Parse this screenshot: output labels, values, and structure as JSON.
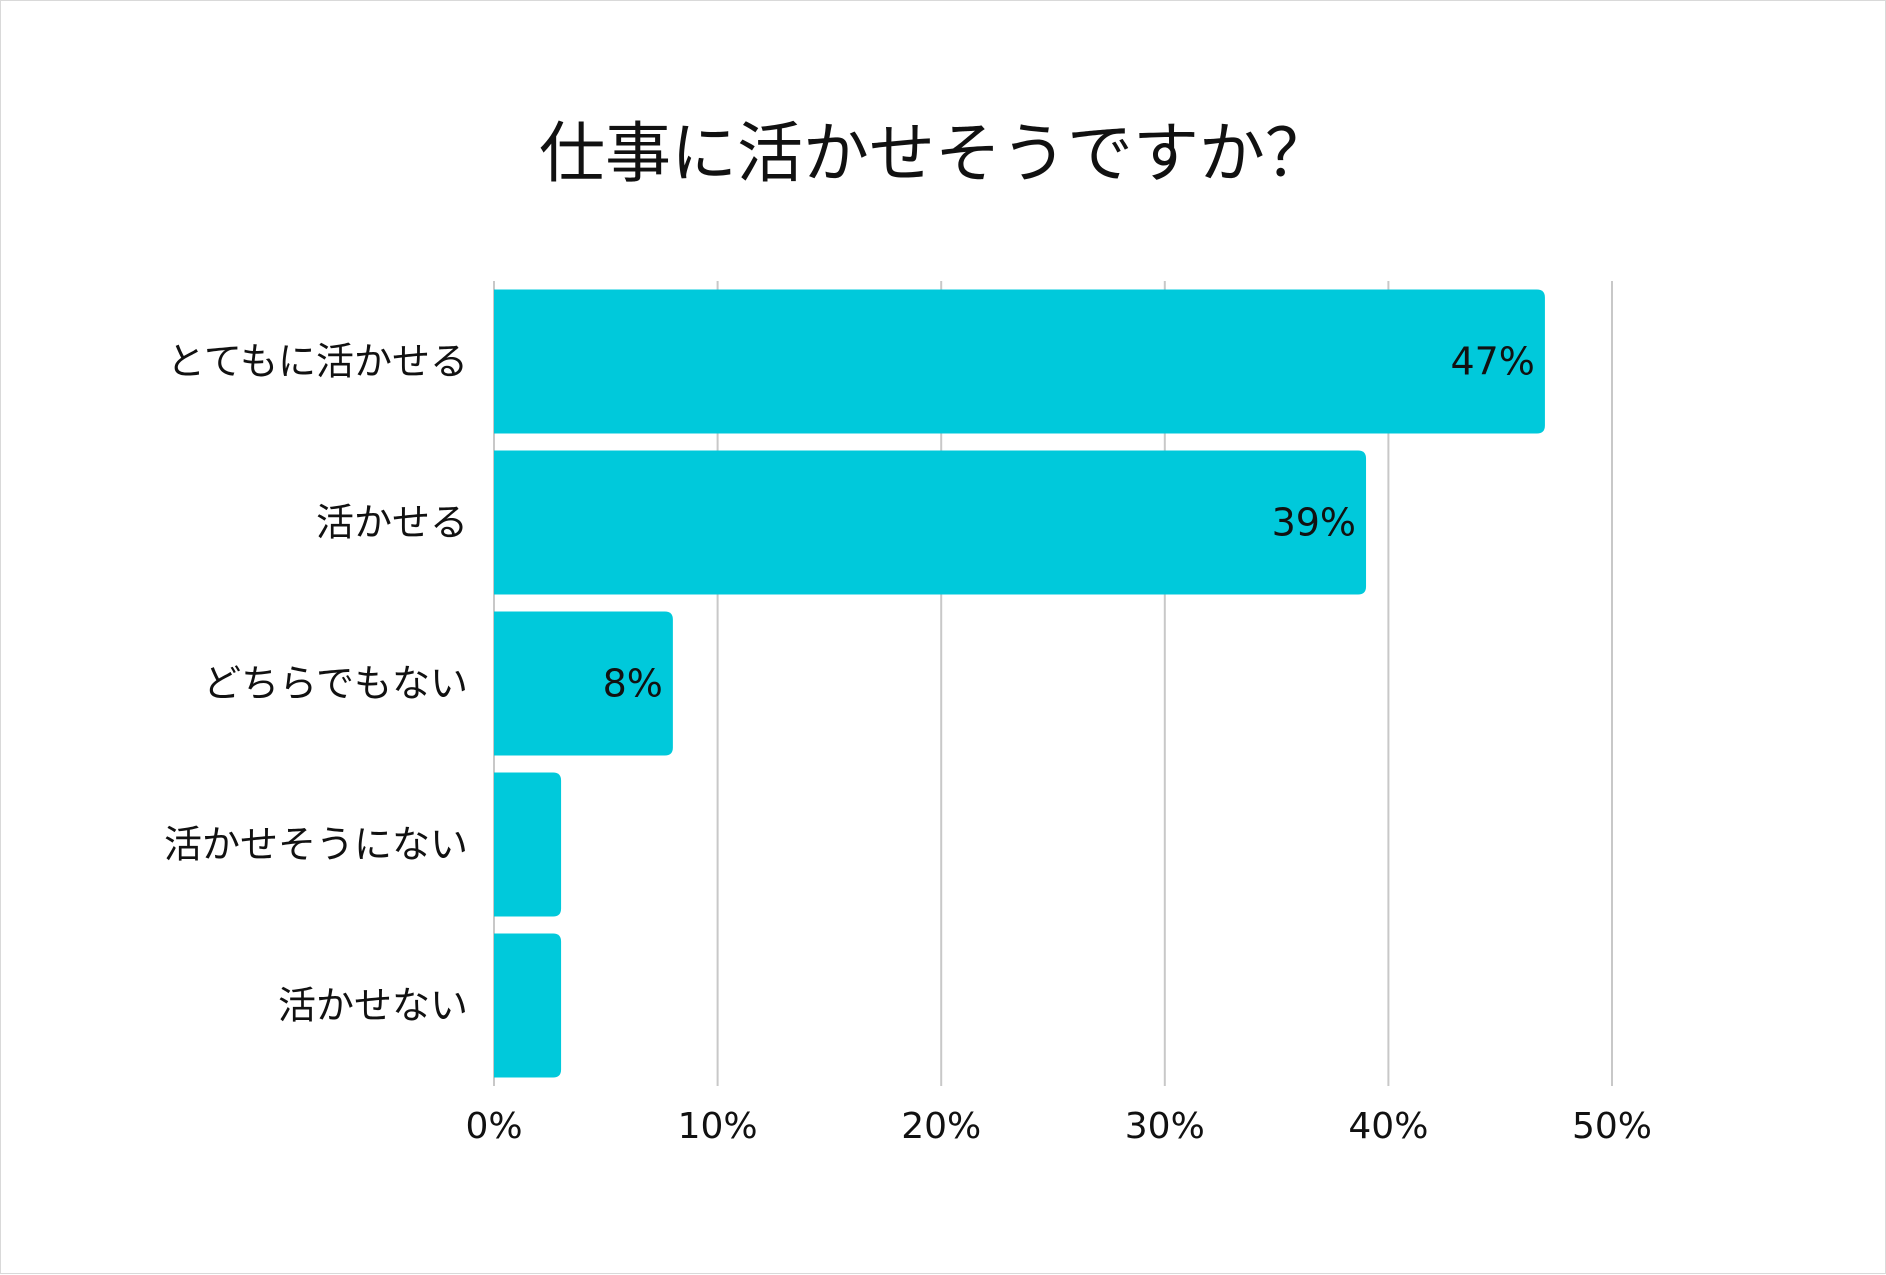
{
  "chart_data": {
    "type": "bar",
    "orientation": "horizontal",
    "title": "仕事に活かせそうですか？",
    "categories": [
      "とてもに活かせる",
      "活かせる",
      "どちらでもない",
      "活かせそうにない",
      "活かせない"
    ],
    "values": [
      47,
      39,
      8,
      3,
      3
    ],
    "value_labels": [
      "47%",
      "39%",
      "8%",
      "",
      ""
    ],
    "xlim": [
      0,
      50
    ],
    "x_ticks": [
      0,
      10,
      20,
      30,
      40,
      50
    ],
    "x_tick_labels": [
      "0%",
      "10%",
      "20%",
      "30%",
      "40%",
      "50%"
    ],
    "grid": true,
    "bar_color": "#00C9DB",
    "grid_color": "#C8C8C8"
  }
}
